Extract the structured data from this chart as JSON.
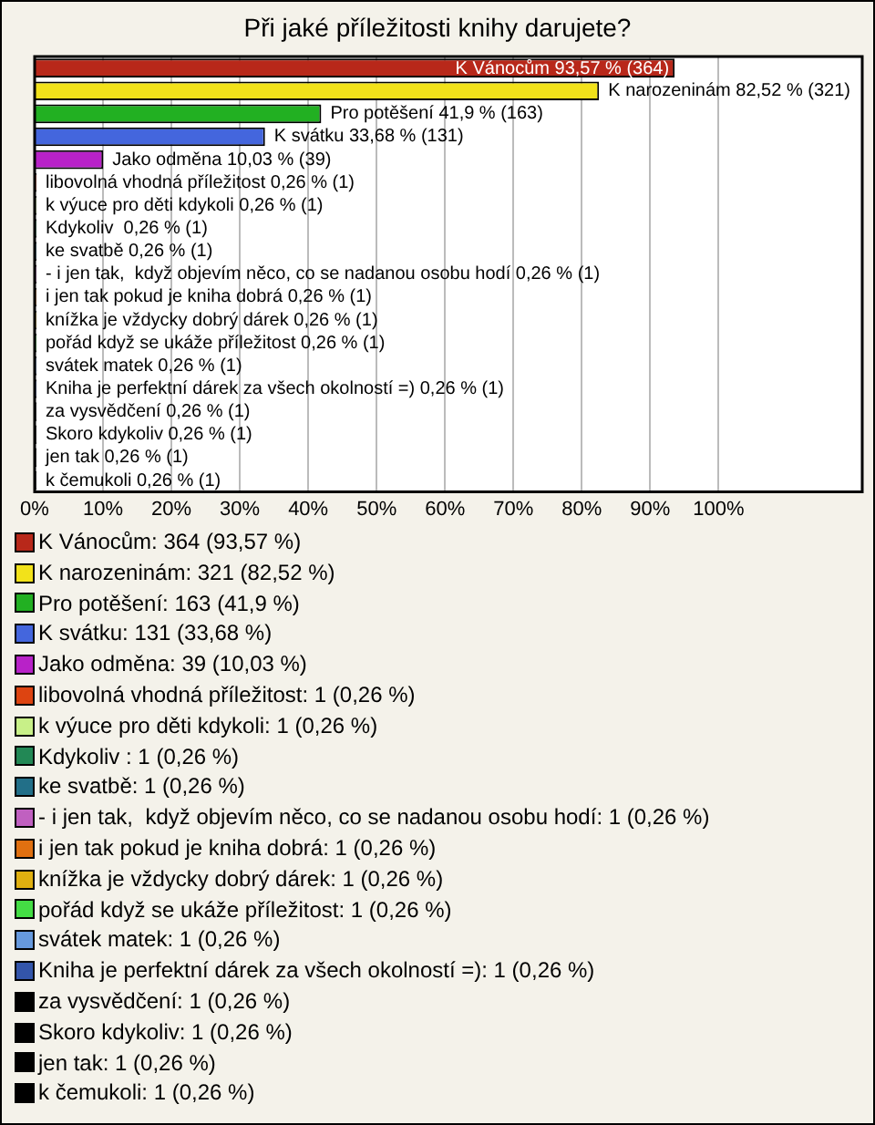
{
  "chart_data": {
    "type": "bar",
    "orientation": "horizontal",
    "title": "Při jaké příležitosti knihy darujete?",
    "categories": [
      "K Vánocům",
      "K narozeninám",
      "Pro potěšení",
      "K svátku",
      "Jako odměna",
      "libovolná vhodná příležitost",
      "k výuce pro děti kdykoli",
      "Kdykoliv ",
      "ke svatbě",
      "- i jen tak,  když objevím něco, co se nadanou osobu hodí",
      "i jen tak pokud je kniha dobrá",
      "knížka je vždycky dobrý dárek",
      "pořád když se ukáže příležitost",
      "svátek matek",
      "Kniha je perfektní dárek za všech okolností =)",
      "za vysvědčení",
      "Skoro kdykoliv",
      "jen tak",
      "k čemukoli"
    ],
    "values": [
      93.57,
      82.52,
      41.9,
      33.68,
      10.03,
      0.26,
      0.26,
      0.26,
      0.26,
      0.26,
      0.26,
      0.26,
      0.26,
      0.26,
      0.26,
      0.26,
      0.26,
      0.26,
      0.26
    ],
    "colors": [
      "#b8281a",
      "#f2e21a",
      "#22b022",
      "#4466dd",
      "#b822c8",
      "#dd4411",
      "#c8f088",
      "#228855",
      "#226f88",
      "#c060c0",
      "#e07010",
      "#e0b010",
      "#44dd44",
      "#6699dd",
      "#3355aa",
      "#000000",
      "#000000",
      "#000000",
      "#000000"
    ],
    "value_labels": [
      "93,57 % (364)",
      "82,52 % (321)",
      "41,9 % (163)",
      "33,68 % (131)",
      "10,03 % (39)",
      "0,26 % (1)",
      "0,26 % (1)",
      "0,26 % (1)",
      "0,26 % (1)",
      "0,26 % (1)",
      "0,26 % (1)",
      "0,26 % (1)",
      "0,26 % (1)",
      "0,26 % (1)",
      "0,26 % (1)",
      "0,26 % (1)",
      "0,26 % (1)",
      "0,26 % (1)",
      "0,26 % (1)"
    ],
    "xlim": [
      0,
      121
    ],
    "xticks": [
      {
        "value": 0,
        "label": "0%"
      },
      {
        "value": 10,
        "label": "10%"
      },
      {
        "value": 20,
        "label": "20%"
      },
      {
        "value": 30,
        "label": "30%"
      },
      {
        "value": 40,
        "label": "40%"
      },
      {
        "value": 50,
        "label": "50%"
      },
      {
        "value": 60,
        "label": "60%"
      },
      {
        "value": 70,
        "label": "70%"
      },
      {
        "value": 80,
        "label": "80%"
      },
      {
        "value": 90,
        "label": "90%"
      },
      {
        "value": 100,
        "label": "100%"
      }
    ],
    "grid": "x",
    "tick_labels": "x",
    "annotations": [
      "K Vánocům: 364 (93,57 %)",
      "K narozeninám: 321 (82,52 %)",
      "Pro potěšení: 163 (41,9 %)",
      "K svátku: 131 (33,68 %)",
      "Jako odměna: 39 (10,03 %)",
      "libovolná vhodná příležitost: 1 (0,26 %)",
      "k výuce pro děti kdykoli: 1 (0,26 %)",
      "Kdykoliv : 1 (0,26 %)",
      "ke svatbě: 1 (0,26 %)",
      "- i jen tak,  když objevím něco, co se nadanou osobu hodí: 1 (0,26 %)",
      "i jen tak pokud je kniha dobrá: 1 (0,26 %)",
      "knížka je vždycky dobrý dárek: 1 (0,26 %)",
      "pořád když se ukáže příležitost: 1 (0,26 %)",
      "svátek matek: 1 (0,26 %)",
      "Kniha je perfektní dárek za všech okolností =): 1 (0,26 %)",
      "za vysvědčení: 1 (0,26 %)",
      "Skoro kdykoliv: 1 (0,26 %)",
      "jen tak: 1 (0,26 %)",
      "k čemukoli: 1 (0,26 %)"
    ]
  }
}
